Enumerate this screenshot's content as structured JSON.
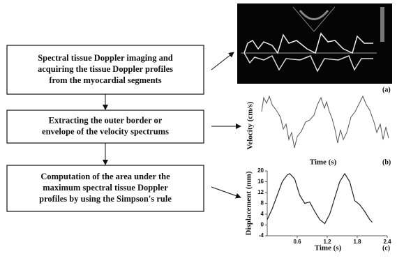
{
  "boxes": [
    {
      "lines": [
        "Spectral tissue Doppler imaging and",
        "acquiring the tissue Doppler profiles",
        "from the myocardial segments"
      ]
    },
    {
      "lines": [
        "Extracting the outer border or",
        "envelope of the velocity spectrums"
      ]
    },
    {
      "lines": [
        "Computation of the area under the",
        "maximum spectral tissue Doppler",
        "profiles by using the Simpson's rule"
      ]
    }
  ],
  "panel_a": {
    "label": "(a)"
  },
  "panel_b": {
    "label": "(b)",
    "y_label": "Velocity (cm/s)",
    "x_label": "Time (s)"
  },
  "chart_data": {
    "type": "line",
    "y_label": "Displacement (mm)",
    "x_label": "Time (s)",
    "label": "(c)",
    "x": [
      0,
      0.1,
      0.2,
      0.3,
      0.4,
      0.45,
      0.55,
      0.65,
      0.75,
      0.85,
      0.95,
      1.05,
      1.15,
      1.25,
      1.35,
      1.45,
      1.55,
      1.65,
      1.75,
      1.85,
      1.95,
      2.05,
      2.1
    ],
    "values": [
      2,
      6,
      11,
      16,
      18.5,
      19,
      17,
      11,
      8,
      8.5,
      5,
      2,
      0.5,
      4,
      10,
      16,
      19,
      16,
      9,
      7.5,
      5,
      2,
      1
    ],
    "color": "#222222",
    "xlim": [
      0,
      2.4
    ],
    "ylim": [
      -4,
      20
    ],
    "xticks": [
      0.6,
      1.2,
      1.8,
      2.4
    ],
    "yticks": [
      -4,
      0,
      4,
      8,
      12,
      16,
      20
    ]
  }
}
